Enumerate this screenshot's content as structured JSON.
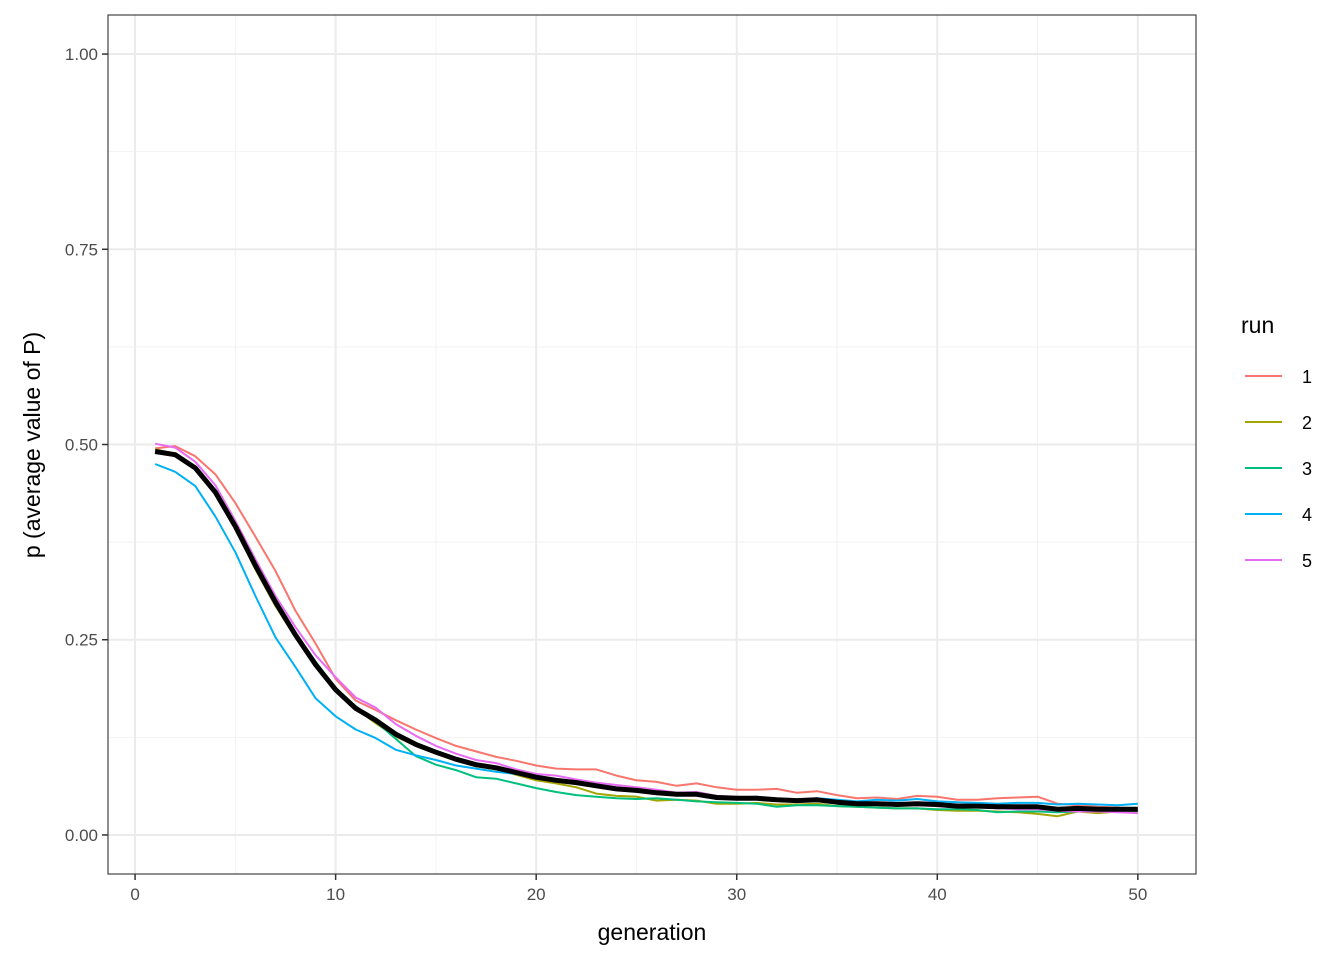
{
  "chart_data": {
    "type": "line",
    "title": "",
    "xlabel": "generation",
    "ylabel": "p (average value of P)",
    "xlim": [
      -1.35,
      52.9
    ],
    "ylim": [
      -0.05,
      1.05
    ],
    "x_ticks": [
      0,
      10,
      20,
      30,
      40,
      50
    ],
    "x_tick_labels": [
      "0",
      "10",
      "20",
      "30",
      "40",
      "50"
    ],
    "y_ticks": [
      0,
      0.25,
      0.5,
      0.75,
      1.0
    ],
    "y_tick_labels": [
      "0.00",
      "0.25",
      "0.50",
      "0.75",
      "1.00"
    ],
    "grid": true,
    "legend_position": "right",
    "legend_title": "run",
    "x": [
      1,
      2,
      3,
      4,
      5,
      6,
      7,
      8,
      9,
      10,
      11,
      12,
      13,
      14,
      15,
      16,
      17,
      18,
      19,
      20,
      21,
      22,
      23,
      24,
      25,
      26,
      27,
      28,
      29,
      30,
      31,
      32,
      33,
      34,
      35,
      36,
      37,
      38,
      39,
      40,
      41,
      42,
      43,
      44,
      45,
      46,
      47,
      48,
      49,
      50
    ],
    "series": [
      {
        "name": "1",
        "color": "#F8766D",
        "values": [
          0.495,
          0.498,
          0.485,
          0.462,
          0.425,
          0.382,
          0.338,
          0.287,
          0.245,
          0.2,
          0.172,
          0.16,
          0.147,
          0.135,
          0.124,
          0.114,
          0.107,
          0.1,
          0.095,
          0.089,
          0.085,
          0.084,
          0.084,
          0.076,
          0.07,
          0.068,
          0.063,
          0.066,
          0.061,
          0.058,
          0.058,
          0.059,
          0.054,
          0.056,
          0.051,
          0.047,
          0.048,
          0.046,
          0.05,
          0.049,
          0.045,
          0.045,
          0.047,
          0.048,
          0.049,
          0.04,
          0.038,
          0.036,
          0.035,
          0.034
        ]
      },
      {
        "name": "2",
        "color": "#A3A500",
        "values": [
          0.494,
          0.488,
          0.47,
          0.436,
          0.392,
          0.34,
          0.293,
          0.253,
          0.218,
          0.186,
          0.162,
          0.143,
          0.126,
          0.114,
          0.104,
          0.095,
          0.088,
          0.084,
          0.077,
          0.07,
          0.066,
          0.061,
          0.053,
          0.05,
          0.049,
          0.044,
          0.045,
          0.044,
          0.04,
          0.04,
          0.041,
          0.039,
          0.039,
          0.04,
          0.037,
          0.036,
          0.035,
          0.034,
          0.034,
          0.032,
          0.031,
          0.031,
          0.03,
          0.029,
          0.027,
          0.024,
          0.03,
          0.028,
          0.03,
          0.03
        ]
      },
      {
        "name": "3",
        "color": "#00BF7D",
        "values": [
          0.492,
          0.487,
          0.472,
          0.439,
          0.395,
          0.346,
          0.299,
          0.258,
          0.222,
          0.188,
          0.165,
          0.145,
          0.123,
          0.101,
          0.09,
          0.083,
          0.074,
          0.072,
          0.066,
          0.06,
          0.055,
          0.051,
          0.049,
          0.047,
          0.046,
          0.047,
          0.045,
          0.043,
          0.042,
          0.041,
          0.04,
          0.036,
          0.038,
          0.038,
          0.037,
          0.036,
          0.035,
          0.034,
          0.034,
          0.033,
          0.033,
          0.032,
          0.029,
          0.03,
          0.03,
          0.029,
          0.03,
          0.031,
          0.031,
          0.031
        ]
      },
      {
        "name": "4",
        "color": "#00B0F6",
        "values": [
          0.475,
          0.465,
          0.447,
          0.408,
          0.362,
          0.306,
          0.253,
          0.215,
          0.175,
          0.152,
          0.135,
          0.124,
          0.109,
          0.102,
          0.096,
          0.089,
          0.085,
          0.081,
          0.078,
          0.073,
          0.07,
          0.067,
          0.063,
          0.06,
          0.057,
          0.055,
          0.052,
          0.051,
          0.049,
          0.048,
          0.049,
          0.046,
          0.045,
          0.047,
          0.045,
          0.043,
          0.045,
          0.044,
          0.046,
          0.043,
          0.042,
          0.041,
          0.04,
          0.041,
          0.041,
          0.039,
          0.04,
          0.039,
          0.038,
          0.04
        ]
      },
      {
        "name": "5",
        "color": "#E76BF3",
        "values": [
          0.501,
          0.496,
          0.478,
          0.448,
          0.402,
          0.353,
          0.306,
          0.266,
          0.23,
          0.202,
          0.176,
          0.163,
          0.142,
          0.127,
          0.114,
          0.104,
          0.096,
          0.092,
          0.084,
          0.078,
          0.076,
          0.071,
          0.067,
          0.064,
          0.061,
          0.058,
          0.054,
          0.055,
          0.05,
          0.049,
          0.048,
          0.046,
          0.044,
          0.044,
          0.041,
          0.04,
          0.039,
          0.038,
          0.038,
          0.037,
          0.035,
          0.036,
          0.034,
          0.033,
          0.033,
          0.031,
          0.03,
          0.03,
          0.029,
          0.028
        ]
      },
      {
        "name": "mean",
        "color": "#000000",
        "values": [
          0.491,
          0.487,
          0.47,
          0.439,
          0.395,
          0.345,
          0.298,
          0.256,
          0.218,
          0.186,
          0.162,
          0.147,
          0.129,
          0.116,
          0.106,
          0.097,
          0.09,
          0.086,
          0.08,
          0.074,
          0.07,
          0.067,
          0.063,
          0.059,
          0.057,
          0.054,
          0.052,
          0.052,
          0.048,
          0.047,
          0.047,
          0.045,
          0.044,
          0.045,
          0.042,
          0.04,
          0.04,
          0.039,
          0.04,
          0.039,
          0.037,
          0.037,
          0.036,
          0.036,
          0.036,
          0.033,
          0.034,
          0.033,
          0.033,
          0.033
        ]
      }
    ]
  },
  "axes": {
    "xlabel": "generation",
    "ylabel": "p (average value of P)"
  },
  "legend": {
    "title": "run",
    "items": [
      {
        "label": "1",
        "color": "#F8766D"
      },
      {
        "label": "2",
        "color": "#A3A500"
      },
      {
        "label": "3",
        "color": "#00BF7D"
      },
      {
        "label": "4",
        "color": "#00B0F6"
      },
      {
        "label": "5",
        "color": "#E76BF3"
      }
    ]
  },
  "colors": {
    "grid_major": "#EBEBEB",
    "grid_minor": "#F2F2F2",
    "panel_border": "#333333",
    "tick_text": "#4D4D4D",
    "mean_line": "#000000"
  }
}
